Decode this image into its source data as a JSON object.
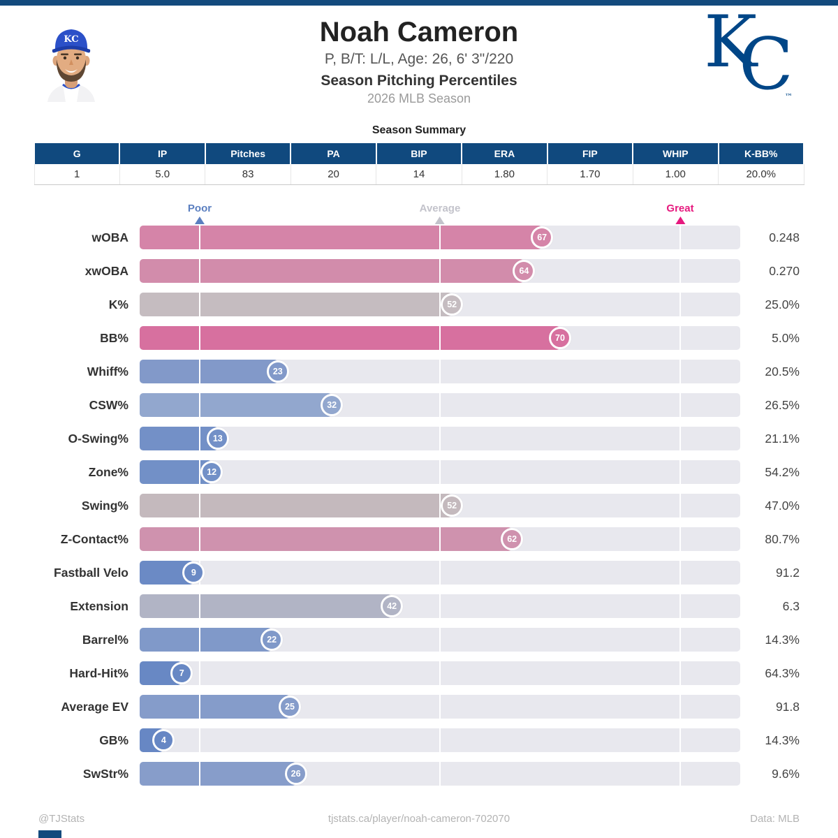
{
  "page": {
    "accent_navy": "#134a7d",
    "background": "#ffffff"
  },
  "header": {
    "player_name": "Noah Cameron",
    "bio_line": "P, B/T: L/L, Age: 26, 6' 3\"/220",
    "chart_title": "Season Pitching Percentiles",
    "season_line": "2026 MLB Season",
    "team_logo": {
      "k": "K",
      "c": "C",
      "tm": "™",
      "color": "#004687"
    }
  },
  "summary": {
    "title": "Season Summary",
    "header_bg": "#10497e",
    "columns": [
      "G",
      "IP",
      "Pitches",
      "PA",
      "BIP",
      "ERA",
      "FIP",
      "WHIP",
      "K-BB%"
    ],
    "values": [
      "1",
      "5.0",
      "83",
      "20",
      "14",
      "1.80",
      "1.70",
      "1.00",
      "20.0%"
    ]
  },
  "chart_data": {
    "type": "bar",
    "subtype": "percentile-bars",
    "title": "Season Pitching Percentiles",
    "x_range": [
      0,
      100
    ],
    "track_color": "#e8e8ee",
    "gridlines_percentiles": [
      10,
      50,
      90
    ],
    "axis_markers": [
      {
        "label": "Poor",
        "percentile": 10,
        "color": "#5b7fc0"
      },
      {
        "label": "Average",
        "percentile": 50,
        "color": "#c3c3cb"
      },
      {
        "label": "Great",
        "percentile": 90,
        "color": "#e6197e"
      }
    ],
    "rows": [
      {
        "label": "wOBA",
        "percentile": 67,
        "value": "0.248",
        "color": "#d584a8"
      },
      {
        "label": "xwOBA",
        "percentile": 64,
        "value": "0.270",
        "color": "#d28cab"
      },
      {
        "label": "K%",
        "percentile": 52,
        "value": "25.0%",
        "color": "#c5bcc0"
      },
      {
        "label": "BB%",
        "percentile": 70,
        "value": "5.0%",
        "color": "#d7709f"
      },
      {
        "label": "Whiff%",
        "percentile": 23,
        "value": "20.5%",
        "color": "#8299c9"
      },
      {
        "label": "CSW%",
        "percentile": 32,
        "value": "26.5%",
        "color": "#92a7ce"
      },
      {
        "label": "O-Swing%",
        "percentile": 13,
        "value": "21.1%",
        "color": "#7390c7"
      },
      {
        "label": "Zone%",
        "percentile": 12,
        "value": "54.2%",
        "color": "#7290c7"
      },
      {
        "label": "Swing%",
        "percentile": 52,
        "value": "47.0%",
        "color": "#c4b9bd"
      },
      {
        "label": "Z-Contact%",
        "percentile": 62,
        "value": "80.7%",
        "color": "#cf92ae"
      },
      {
        "label": "Fastball Velo",
        "percentile": 9,
        "value": "91.2",
        "color": "#6b8ac5"
      },
      {
        "label": "Extension",
        "percentile": 42,
        "value": "6.3",
        "color": "#b1b4c5"
      },
      {
        "label": "Barrel%",
        "percentile": 22,
        "value": "14.3%",
        "color": "#8099c9"
      },
      {
        "label": "Hard-Hit%",
        "percentile": 7,
        "value": "64.3%",
        "color": "#6888c4"
      },
      {
        "label": "Average EV",
        "percentile": 25,
        "value": "91.8",
        "color": "#859cca"
      },
      {
        "label": "GB%",
        "percentile": 4,
        "value": "14.3%",
        "color": "#6787c4"
      },
      {
        "label": "SwStr%",
        "percentile": 26,
        "value": "9.6%",
        "color": "#879dca"
      }
    ]
  },
  "footer": {
    "left": "@TJStats",
    "center": "tjstats.ca/player/noah-cameron-702070",
    "right": "Data: MLB"
  }
}
